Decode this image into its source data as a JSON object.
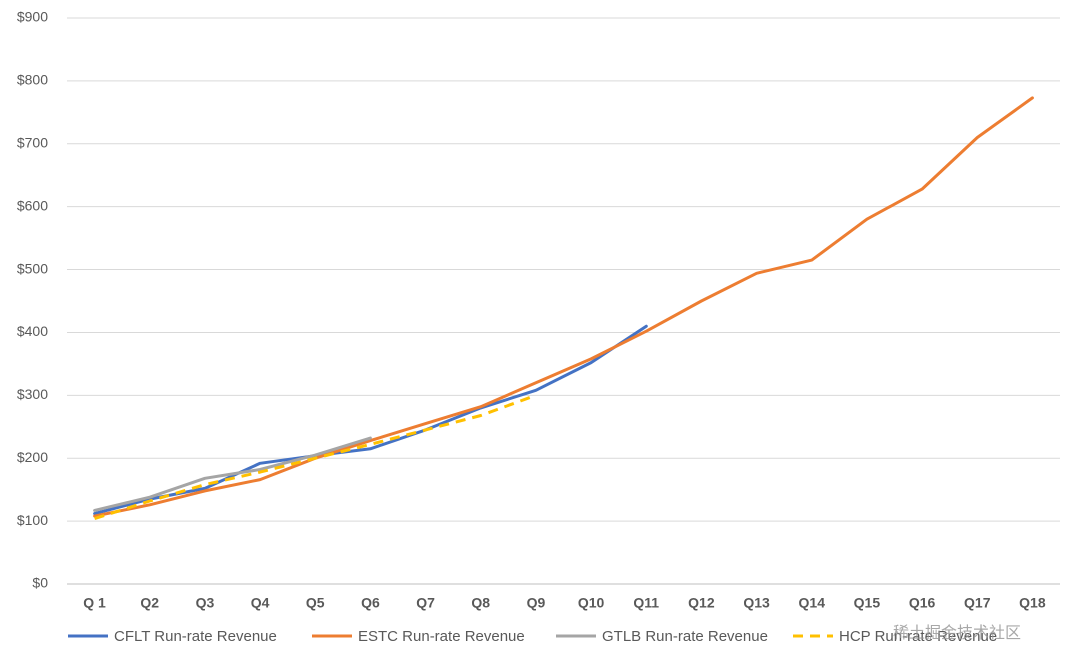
{
  "chart_data": {
    "type": "line",
    "categories": [
      "Q 1",
      "Q2",
      "Q3",
      "Q4",
      "Q5",
      "Q6",
      "Q7",
      "Q8",
      "Q9",
      "Q10",
      "Q11",
      "Q12",
      "Q13",
      "Q14",
      "Q15",
      "Q16",
      "Q17",
      "Q18"
    ],
    "series": [
      {
        "name": "CFLT Run-rate Revenue",
        "color": "#4472c4",
        "values": [
          112,
          135,
          152,
          192,
          204,
          215,
          245,
          280,
          308,
          352,
          410,
          null,
          null,
          null,
          null,
          null,
          null,
          null
        ]
      },
      {
        "name": "ESTC Run-rate Revenue",
        "color": "#ed7d31",
        "values": [
          108,
          126,
          148,
          166,
          200,
          228,
          255,
          282,
          320,
          358,
          402,
          450,
          494,
          515,
          580,
          628,
          710,
          773
        ]
      },
      {
        "name": "GTLB Run-rate Revenue",
        "color": "#a5a5a5",
        "values": [
          117,
          138,
          168,
          182,
          205,
          232,
          null,
          null,
          null,
          null,
          null,
          null,
          null,
          null,
          null,
          null,
          null,
          null
        ]
      },
      {
        "name": "HCP Run-rate Revenue",
        "color": "#ffc000",
        "dashed": true,
        "values": [
          104,
          132,
          158,
          178,
          200,
          222,
          245,
          268,
          300,
          null,
          null,
          null,
          null,
          null,
          null,
          null,
          null,
          null
        ]
      }
    ],
    "ylim": [
      0,
      900
    ],
    "yticks": [
      {
        "value": 0,
        "label": "$0"
      },
      {
        "value": 100,
        "label": "$100"
      },
      {
        "value": 200,
        "label": "$200"
      },
      {
        "value": 300,
        "label": "$300"
      },
      {
        "value": 400,
        "label": "$400"
      },
      {
        "value": 500,
        "label": "$500"
      },
      {
        "value": 600,
        "label": "$600"
      },
      {
        "value": 700,
        "label": "$700"
      },
      {
        "value": 800,
        "label": "$800"
      },
      {
        "value": 900,
        "label": "$900"
      }
    ],
    "grid": true,
    "legend": "bottom",
    "watermark": "稀土掘金技术社区"
  }
}
